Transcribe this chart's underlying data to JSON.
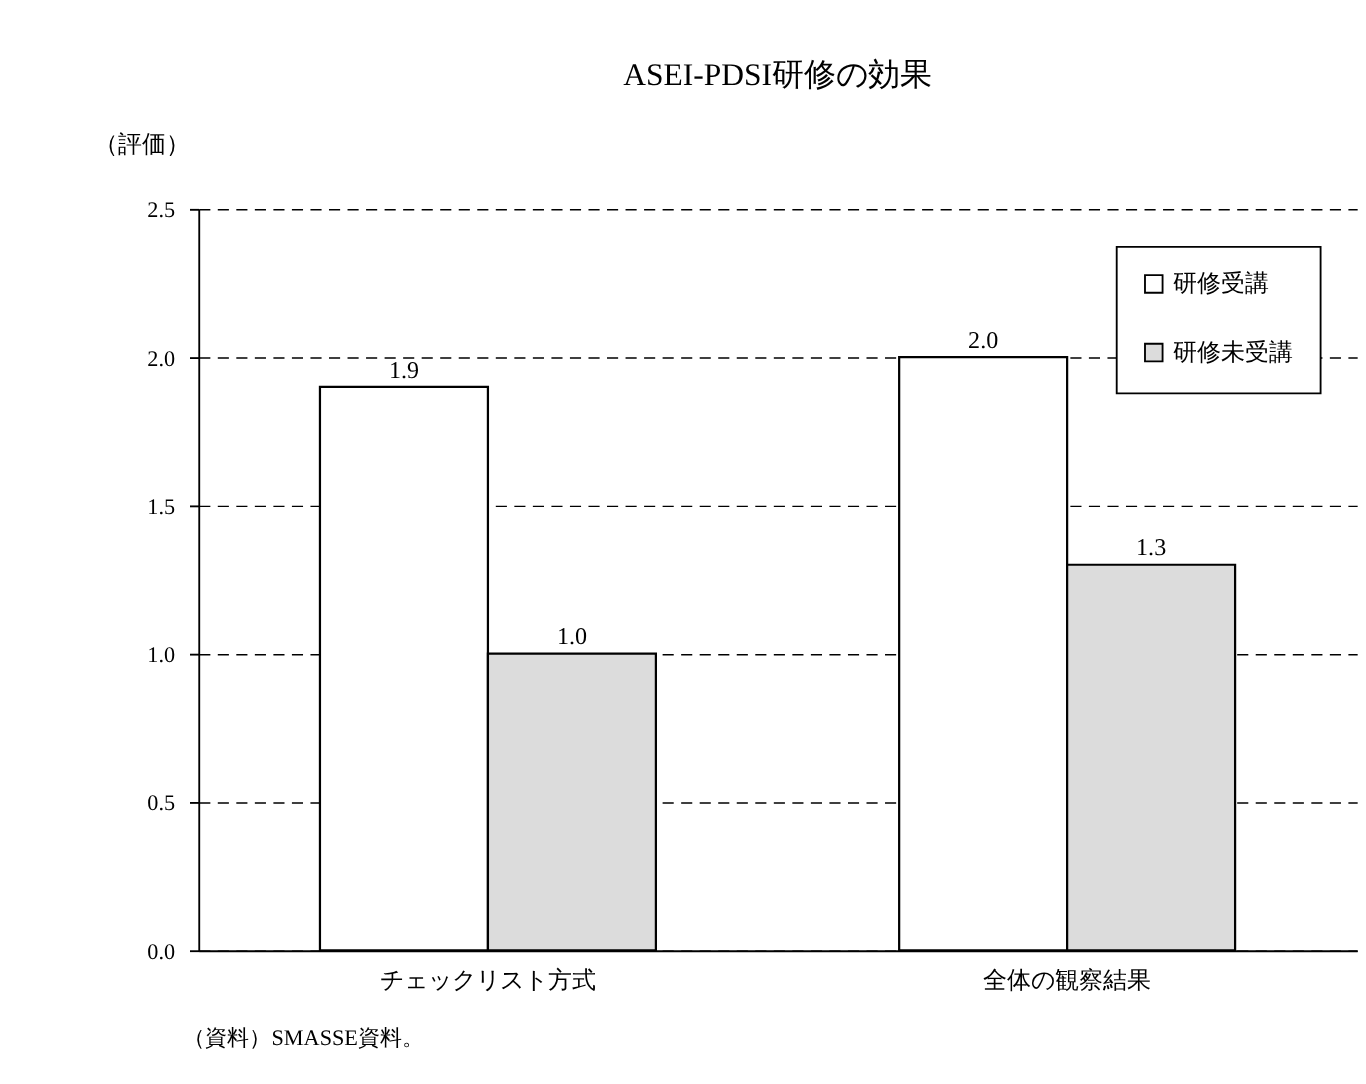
{
  "chart_data": {
    "type": "bar",
    "title": "ASEI-PDSI研修の効果",
    "ylabel": "（評価）",
    "categories": [
      "チェックリスト方式",
      "全体の観察結果"
    ],
    "series": [
      {
        "name": "研修受講",
        "color": "#ffffff",
        "values": [
          1.9,
          2.0
        ],
        "value_labels": [
          "1.9",
          "2.0"
        ]
      },
      {
        "name": "研修未受講",
        "color": "#dcdcdc",
        "values": [
          1.0,
          1.3
        ],
        "value_labels": [
          "1.0",
          "1.3"
        ]
      }
    ],
    "ylim": [
      0,
      2.5
    ],
    "yticks": [
      {
        "value": 0,
        "label": "0.0"
      },
      {
        "value": 0.5,
        "label": "0.5"
      },
      {
        "value": 1,
        "label": "1.0"
      },
      {
        "value": 1.5,
        "label": "1.5"
      },
      {
        "value": 2,
        "label": "2.0"
      },
      {
        "value": 2.5,
        "label": "2.5"
      }
    ],
    "grid": "y",
    "legend": "top right",
    "annotations": [
      "（資料）SMASSE資料。"
    ]
  }
}
